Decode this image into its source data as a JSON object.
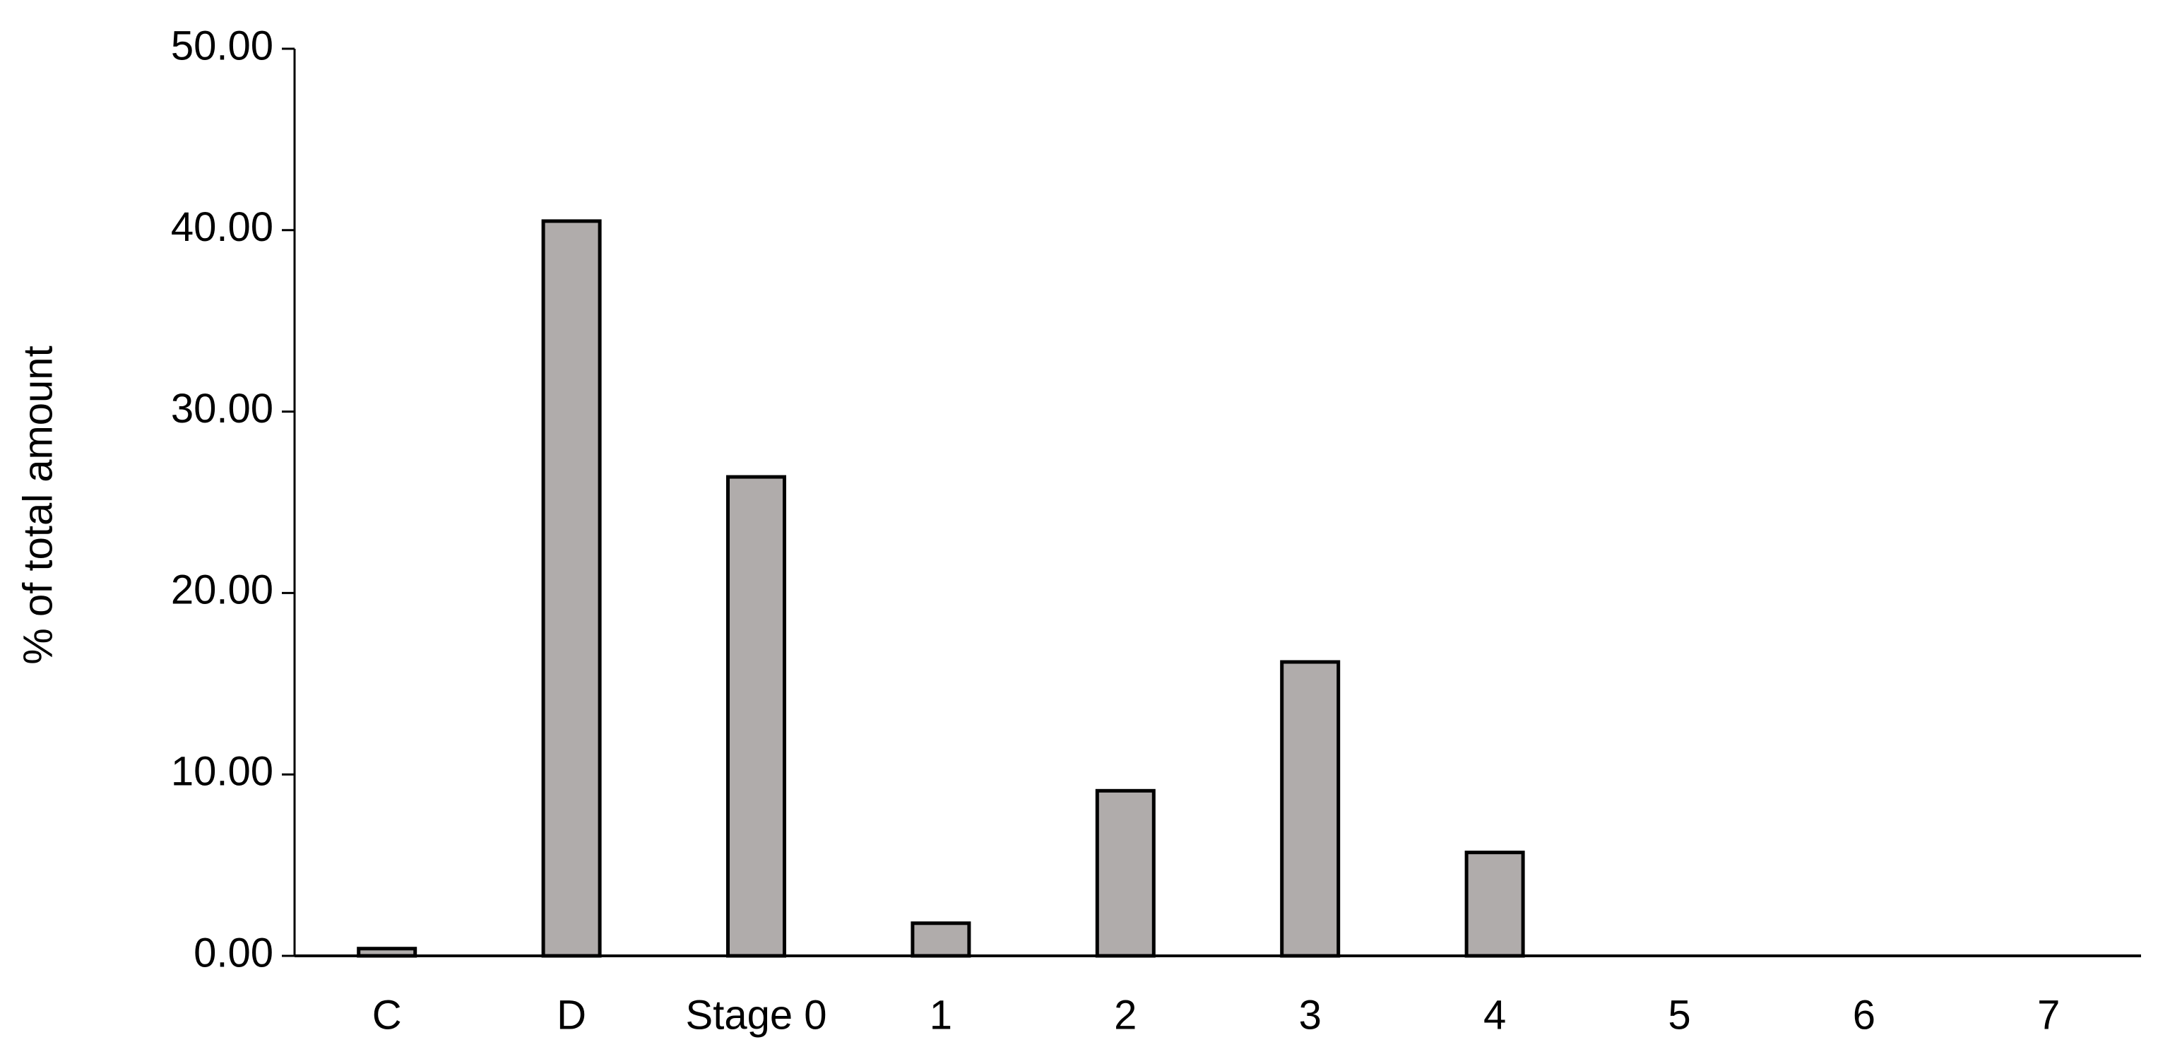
{
  "chart_data": {
    "type": "bar",
    "y_label": "% of total amount",
    "categories": [
      "C",
      "D",
      "Stage 0",
      "1",
      "2",
      "3",
      "4",
      "5",
      "6",
      "7"
    ],
    "values": [
      0.4,
      40.5,
      26.4,
      1.8,
      9.1,
      16.2,
      5.7,
      0,
      0,
      0
    ],
    "color": "#b0acab",
    "ylim": [
      0,
      50
    ],
    "yticks": [
      {
        "value": 0,
        "label": "0.00"
      },
      {
        "value": 10,
        "label": "10.00"
      },
      {
        "value": 20,
        "label": "20.00"
      },
      {
        "value": 30,
        "label": "30.00"
      },
      {
        "value": 40,
        "label": "40.00"
      },
      {
        "value": 50,
        "label": "50.00"
      }
    ],
    "grid": false
  }
}
